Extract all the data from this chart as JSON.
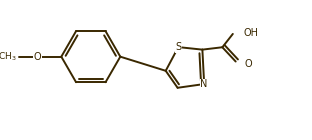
{
  "background_color": "#ffffff",
  "line_color": "#3a2800",
  "text_color": "#3a2800",
  "line_width": 1.4,
  "figsize": [
    3.12,
    1.4
  ],
  "dpi": 100,
  "xlim": [
    0.0,
    6.2
  ],
  "ylim": [
    -1.4,
    1.4
  ]
}
